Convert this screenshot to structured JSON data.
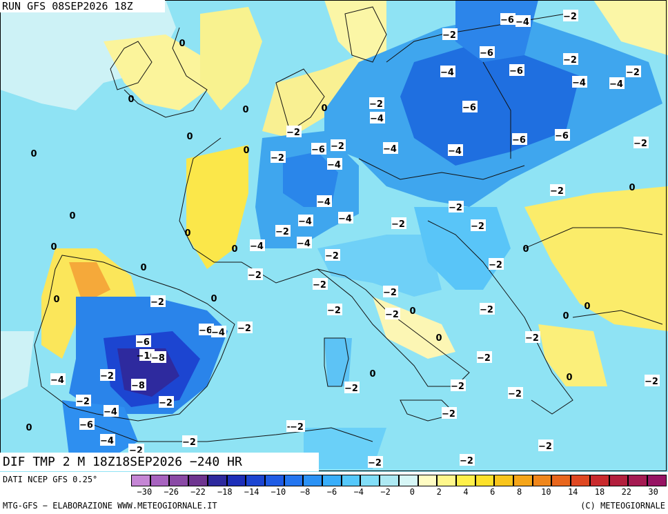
{
  "header": {
    "run_title": "RUN GFS 08SEP2026 18Z",
    "variable_title": "DIF TMP 2 M 18Z18SEP2026 −240 HR"
  },
  "footer": {
    "source": "DATI NCEP GFS 0.25°",
    "processing": "MTG-GFS − ELABORAZIONE WWW.METEOGIORNALE.IT",
    "copyright": "(C) METEOGIORNALE"
  },
  "legend": {
    "colors": [
      "#c586d5",
      "#a763bf",
      "#8a4aa6",
      "#6e3590",
      "#2e2a9e",
      "#1d2fb8",
      "#1c45d1",
      "#1f5ce5",
      "#2476f0",
      "#2b92f5",
      "#39aefa",
      "#55c8fb",
      "#82def8",
      "#ade9f3",
      "#d6f6f6",
      "#fffcc3",
      "#fff78b",
      "#fff04a",
      "#fde12a",
      "#f9c51c",
      "#f5a519",
      "#ef861b",
      "#e8661d",
      "#df4822",
      "#c92a2d",
      "#b31f3d",
      "#a51a52",
      "#961463"
    ],
    "ticks": [
      "−30",
      "−26",
      "−22",
      "−18",
      "−14",
      "−10",
      "−8",
      "−6",
      "−4",
      "−2",
      "0",
      "2",
      "4",
      "6",
      "8",
      "10",
      "14",
      "18",
      "22",
      "30"
    ]
  },
  "map": {
    "contour_labels": [
      "−6",
      "−4",
      "−2",
      "−2",
      "−6",
      "−2",
      "−4",
      "−6",
      "−4",
      "−4",
      "−2",
      "−6",
      "−4",
      "−2",
      "−6",
      "−6",
      "−4",
      "−2",
      "−4",
      "−2",
      "−6",
      "−2",
      "−4",
      "−4",
      "−4",
      "−4",
      "−2",
      "−2",
      "−4",
      "−2",
      "−2",
      "−2",
      "−4",
      "−2",
      "−2",
      "−2",
      "−2",
      "−2",
      "−2",
      "−2",
      "−2",
      "−2",
      "−2",
      "−2",
      "−2",
      "−2",
      "−2",
      "−2",
      "−2",
      "−2",
      "−2",
      "−2",
      "−2",
      "−6",
      "−4",
      "−6",
      "−10",
      "−8",
      "−2",
      "−4",
      "−8",
      "−2",
      "−2",
      "−4",
      "−6",
      "−4",
      "−2",
      "−2",
      "−2",
      "−2",
      "−2",
      "−2",
      "0",
      "0",
      "0",
      "0",
      "0",
      "0",
      "0",
      "0",
      "0",
      "0",
      "0",
      "0",
      "0",
      "0",
      "0",
      "0",
      "0",
      "0",
      "0",
      "0",
      "0",
      "0",
      "0"
    ]
  }
}
